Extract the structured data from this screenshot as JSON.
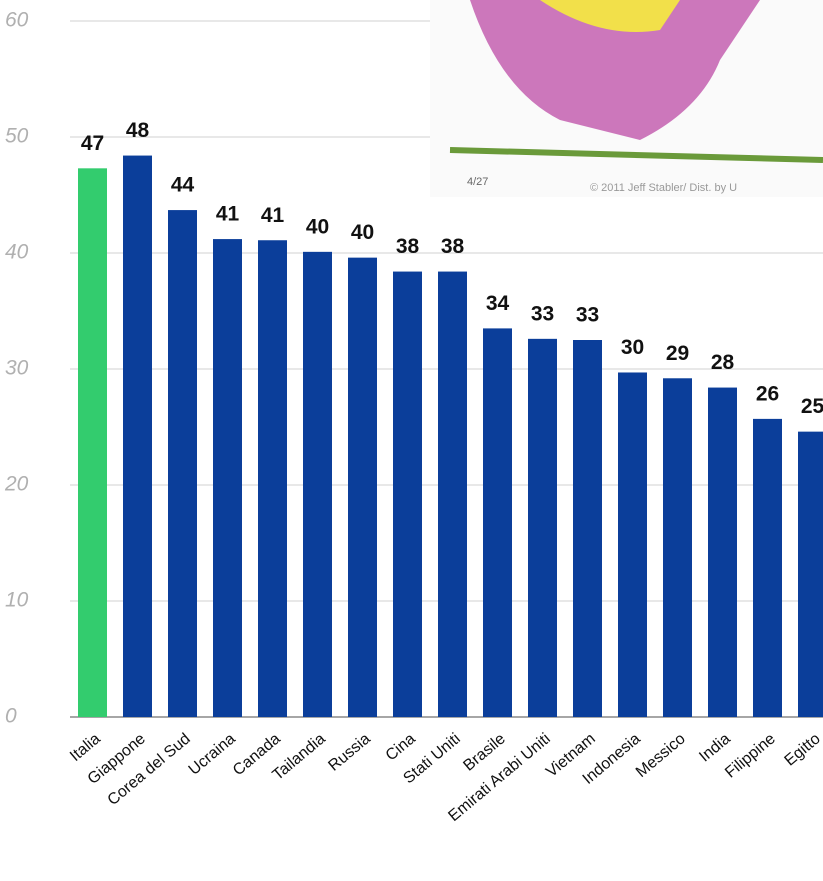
{
  "chart_data": {
    "type": "bar",
    "categories": [
      "Italia",
      "Giappone",
      "Corea del Sud",
      "Ucraina",
      "Canada",
      "Tailandia",
      "Russia",
      "Cina",
      "Stati Uniti",
      "Brasile",
      "Emirati Arabi Uniti",
      "Vietnam",
      "Indonesia",
      "Messico",
      "India",
      "Filippine",
      "Egitto"
    ],
    "values": [
      47.3,
      48.4,
      43.7,
      41.2,
      41.1,
      40.1,
      39.6,
      38.4,
      38.4,
      33.5,
      32.6,
      32.5,
      29.7,
      29.2,
      28.4,
      25.7,
      24.6
    ],
    "value_labels": [
      "47",
      "48",
      "44",
      "41",
      "41",
      "40",
      "40",
      "38",
      "38",
      "34",
      "33",
      "33",
      "30",
      "29",
      "28",
      "26",
      "25"
    ],
    "colors": [
      "#33cc6e",
      "#0b3e9a",
      "#0b3e9a",
      "#0b3e9a",
      "#0b3e9a",
      "#0b3e9a",
      "#0b3e9a",
      "#0b3e9a",
      "#0b3e9a",
      "#0b3e9a",
      "#0b3e9a",
      "#0b3e9a",
      "#0b3e9a",
      "#0b3e9a",
      "#0b3e9a",
      "#0b3e9a",
      "#0b3e9a"
    ],
    "ylim": [
      0,
      60
    ],
    "yticks": [
      0,
      10,
      20,
      30,
      40,
      50,
      60
    ],
    "grid": true
  },
  "cartoon": {
    "date": "4/27",
    "credit": "© 2011 Jeff Stabler/ Dist. by U"
  }
}
